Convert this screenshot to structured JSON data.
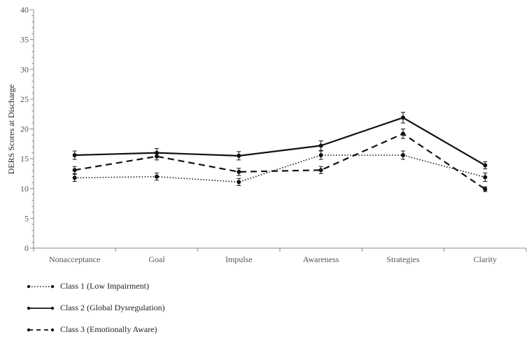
{
  "chart_data": {
    "type": "line",
    "title": "",
    "xlabel": "",
    "ylabel": "DERS Scores at Discharge",
    "categories": [
      "Nonacceptance",
      "Goal",
      "Impulse",
      "Awareness",
      "Strategies",
      "Clarity"
    ],
    "y_ticks": [
      "0",
      "5",
      "10",
      "15",
      "20",
      "25",
      "30",
      "35",
      "40"
    ],
    "ylim": [
      0,
      40
    ],
    "grid": false,
    "legend_position": "bottom-left",
    "series": [
      {
        "name": "Class 1 (Low Impairment)",
        "style": "dotted",
        "values": [
          11.8,
          12.0,
          11.1,
          15.6,
          15.6,
          11.9
        ],
        "errors": [
          0.6,
          0.6,
          0.6,
          0.7,
          0.7,
          0.7
        ]
      },
      {
        "name": "Class 2 (Global Dysregulation)",
        "style": "solid",
        "values": [
          15.6,
          16.0,
          15.5,
          17.2,
          21.9,
          13.9
        ],
        "errors": [
          0.7,
          0.7,
          0.7,
          0.8,
          0.9,
          0.6
        ]
      },
      {
        "name": "Class 3 (Emotionally Aware)",
        "style": "dashed",
        "values": [
          13.1,
          15.4,
          12.8,
          13.1,
          19.2,
          9.9
        ],
        "errors": [
          0.6,
          0.6,
          0.6,
          0.6,
          0.8,
          0.4
        ]
      }
    ],
    "colors": {
      "line": "#111111",
      "axis": "#888888"
    }
  }
}
